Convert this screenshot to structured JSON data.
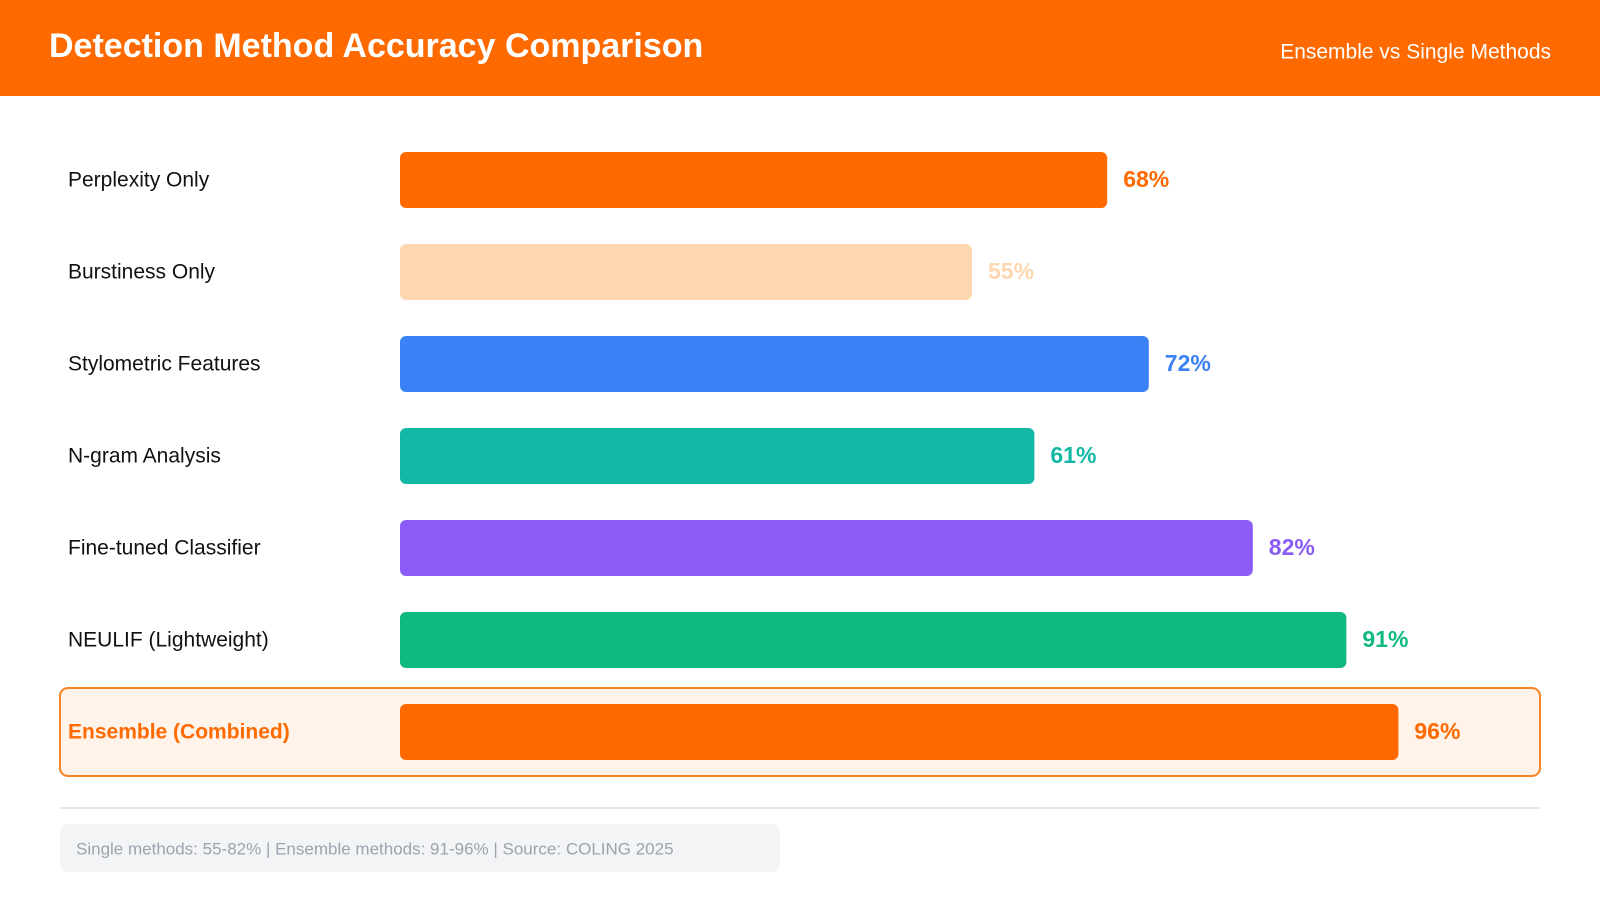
{
  "chart_data": {
    "type": "bar",
    "orientation": "horizontal",
    "title": "Detection Method Accuracy Comparison",
    "subtitle": "Ensemble vs Single Methods",
    "categories": [
      "Perplexity Only",
      "Burstiness Only",
      "Stylometric Features",
      "N-gram Analysis",
      "Fine-tuned Classifier",
      "NEULIF (Lightweight)",
      "Ensemble (Combined)"
    ],
    "values": [
      68,
      55,
      72,
      61,
      82,
      91,
      96
    ],
    "value_labels": [
      "68%",
      "55%",
      "72%",
      "61%",
      "82%",
      "91%",
      "96%"
    ],
    "colors": [
      "#ff6a00",
      "#fed7b0",
      "#3b82f6",
      "#14b8a6",
      "#8b5cf6",
      "#10b981",
      "#ff6a00"
    ],
    "note": "Single methods: 55-82% | Ensemble methods: 91-96% | Source: COLING 2025"
  }
}
